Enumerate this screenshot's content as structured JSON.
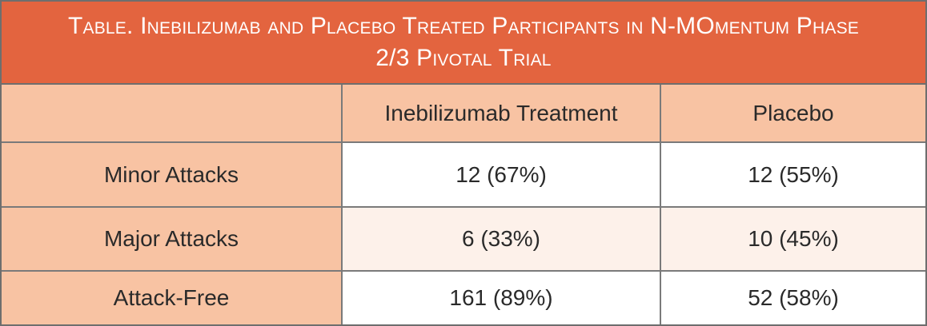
{
  "title": {
    "line1": "Table. Inebilizumab and Placebo Treated Participants in N-MOmentum Phase",
    "line2": "2/3 Pivotal Trial"
  },
  "table": {
    "columns": [
      "",
      "Inebilizumab Treatment",
      "Placebo"
    ],
    "rows": [
      {
        "label": "Minor Attacks",
        "inebilizumab": "12 (67%)",
        "placebo": "12 (55%)"
      },
      {
        "label": "Major Attacks",
        "inebilizumab": "6 (33%)",
        "placebo": "10 (45%)"
      },
      {
        "label": "Attack-Free",
        "inebilizumab": "161 (89%)",
        "placebo": "52 (58%)"
      }
    ]
  },
  "colors": {
    "title_bg": "#e3643f",
    "header_bg": "#f8c3a3",
    "tint_row_bg": "#fdf1ea",
    "border": "#7a7a7a"
  }
}
